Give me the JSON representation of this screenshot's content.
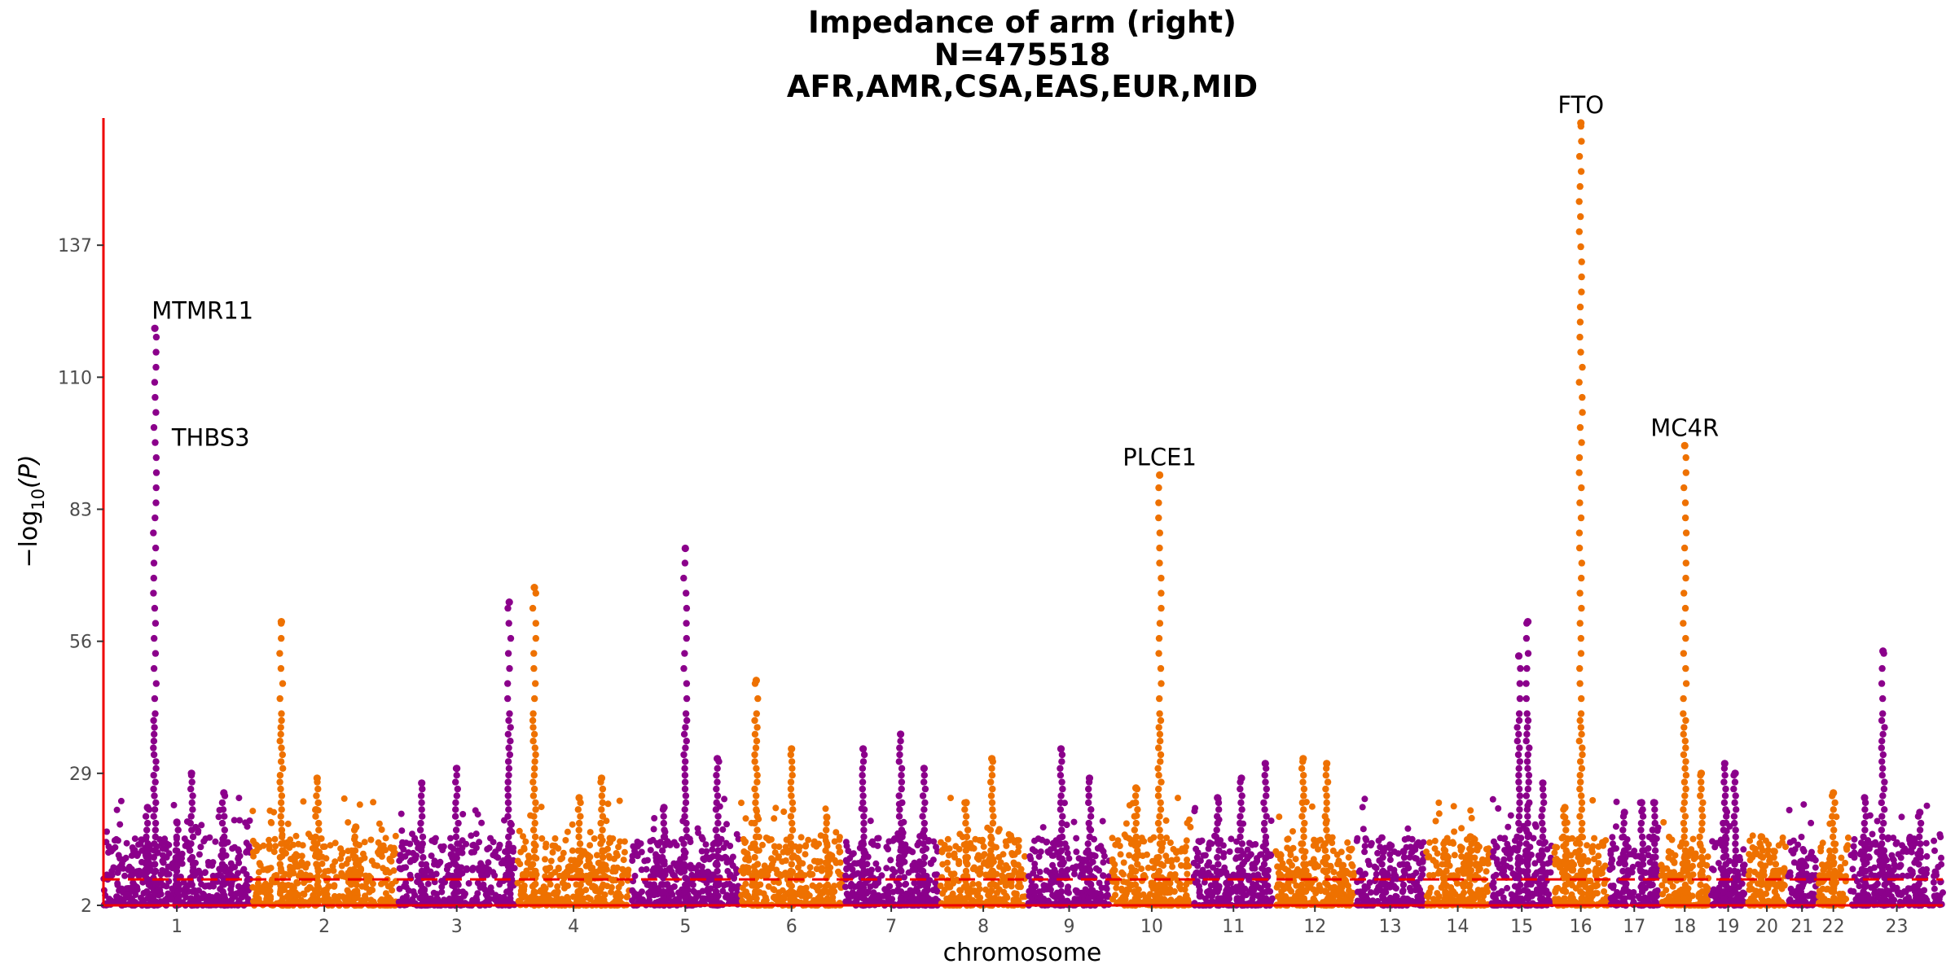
{
  "chart_data": {
    "type": "scatter",
    "subtype": "manhattan",
    "title": [
      "Impedance of arm (right)",
      "N=475518",
      "AFR,AMR,CSA,EAS,EUR,MID"
    ],
    "xlabel": "chromosome",
    "ylabel_main": "−log",
    "ylabel_sub": "10",
    "ylabel_var": "(P)",
    "y_ticks": [
      2,
      29,
      56,
      83,
      110,
      137
    ],
    "y_tick_labels": [
      "2",
      "29",
      "56",
      "83",
      "110",
      "137"
    ],
    "ylim": [
      2,
      163
    ],
    "significance_line": 7.3,
    "colors": {
      "odd": "#8b008b",
      "even": "#ee7100",
      "threshold": "#ee0000",
      "axis": "#ee0000"
    },
    "grid": false,
    "legend": "none",
    "chromosomes": [
      {
        "label": "1",
        "peaks": [
          {
            "x": 0.3,
            "h": 22
          },
          {
            "x": 0.5,
            "h": 19
          },
          {
            "x": 0.82,
            "h": 25
          },
          {
            "x": 0.35,
            "h": 120
          },
          {
            "x": 0.6,
            "h": 29
          }
        ]
      },
      {
        "label": "2",
        "peaks": [
          {
            "x": 0.2,
            "h": 60
          },
          {
            "x": 0.45,
            "h": 28
          },
          {
            "x": 0.72,
            "h": 18
          }
        ]
      },
      {
        "label": "3",
        "peaks": [
          {
            "x": 0.5,
            "h": 30
          },
          {
            "x": 0.95,
            "h": 64
          },
          {
            "x": 0.2,
            "h": 27
          }
        ]
      },
      {
        "label": "4",
        "peaks": [
          {
            "x": 0.15,
            "h": 67
          },
          {
            "x": 0.55,
            "h": 24
          },
          {
            "x": 0.75,
            "h": 28
          }
        ]
      },
      {
        "label": "5",
        "peaks": [
          {
            "x": 0.5,
            "h": 75
          },
          {
            "x": 0.8,
            "h": 32
          },
          {
            "x": 0.3,
            "h": 22
          }
        ]
      },
      {
        "label": "6",
        "peaks": [
          {
            "x": 0.5,
            "h": 34
          },
          {
            "x": 0.15,
            "h": 48
          },
          {
            "x": 0.85,
            "h": 20
          }
        ]
      },
      {
        "label": "7",
        "peaks": [
          {
            "x": 0.2,
            "h": 34
          },
          {
            "x": 0.6,
            "h": 37
          },
          {
            "x": 0.85,
            "h": 30
          }
        ]
      },
      {
        "label": "8",
        "peaks": [
          {
            "x": 0.6,
            "h": 32
          },
          {
            "x": 0.3,
            "h": 23
          }
        ]
      },
      {
        "label": "9",
        "peaks": [
          {
            "x": 0.4,
            "h": 34
          },
          {
            "x": 0.75,
            "h": 28
          }
        ]
      },
      {
        "label": "10",
        "peaks": [
          {
            "x": 0.6,
            "h": 90
          },
          {
            "x": 0.3,
            "h": 26
          }
        ]
      },
      {
        "label": "11",
        "peaks": [
          {
            "x": 0.3,
            "h": 24
          },
          {
            "x": 0.6,
            "h": 28
          },
          {
            "x": 0.9,
            "h": 31
          }
        ]
      },
      {
        "label": "12",
        "peaks": [
          {
            "x": 0.35,
            "h": 32
          },
          {
            "x": 0.65,
            "h": 31
          }
        ]
      },
      {
        "label": "13",
        "peaks": [
          {
            "x": 0.4,
            "h": 13
          },
          {
            "x": 0.7,
            "h": 13
          }
        ]
      },
      {
        "label": "14",
        "peaks": [
          {
            "x": 0.3,
            "h": 15
          },
          {
            "x": 0.7,
            "h": 16
          }
        ]
      },
      {
        "label": "15",
        "peaks": [
          {
            "x": 0.45,
            "h": 53
          },
          {
            "x": 0.6,
            "h": 60
          },
          {
            "x": 0.85,
            "h": 27
          }
        ]
      },
      {
        "label": "16",
        "peaks": [
          {
            "x": 0.5,
            "h": 162
          },
          {
            "x": 0.2,
            "h": 22
          }
        ]
      },
      {
        "label": "17",
        "peaks": [
          {
            "x": 0.3,
            "h": 21
          },
          {
            "x": 0.65,
            "h": 23
          },
          {
            "x": 0.9,
            "h": 23
          }
        ]
      },
      {
        "label": "18",
        "peaks": [
          {
            "x": 0.5,
            "h": 96
          },
          {
            "x": 0.85,
            "h": 29
          }
        ]
      },
      {
        "label": "19",
        "peaks": [
          {
            "x": 0.4,
            "h": 31
          },
          {
            "x": 0.7,
            "h": 29
          }
        ]
      },
      {
        "label": "20",
        "peaks": [
          {
            "x": 0.35,
            "h": 16
          },
          {
            "x": 0.7,
            "h": 13
          }
        ]
      },
      {
        "label": "21",
        "peaks": [
          {
            "x": 0.5,
            "h": 11
          }
        ]
      },
      {
        "label": "22",
        "peaks": [
          {
            "x": 0.5,
            "h": 25
          }
        ]
      },
      {
        "label": "23",
        "peaks": [
          {
            "x": 0.35,
            "h": 54
          },
          {
            "x": 0.15,
            "h": 24
          },
          {
            "x": 0.75,
            "h": 21
          }
        ]
      }
    ],
    "annotations": [
      {
        "label": "MTMR11",
        "x": 1.37,
        "y": 120
      },
      {
        "label": "THBS3",
        "x": 1.37,
        "y": 94
      },
      {
        "label": "PLCE1",
        "x": 10.6,
        "y": 90
      },
      {
        "label": "FTO",
        "x": 16.5,
        "y": 162
      },
      {
        "label": "MC4R",
        "x": 18.5,
        "y": 96
      }
    ]
  }
}
